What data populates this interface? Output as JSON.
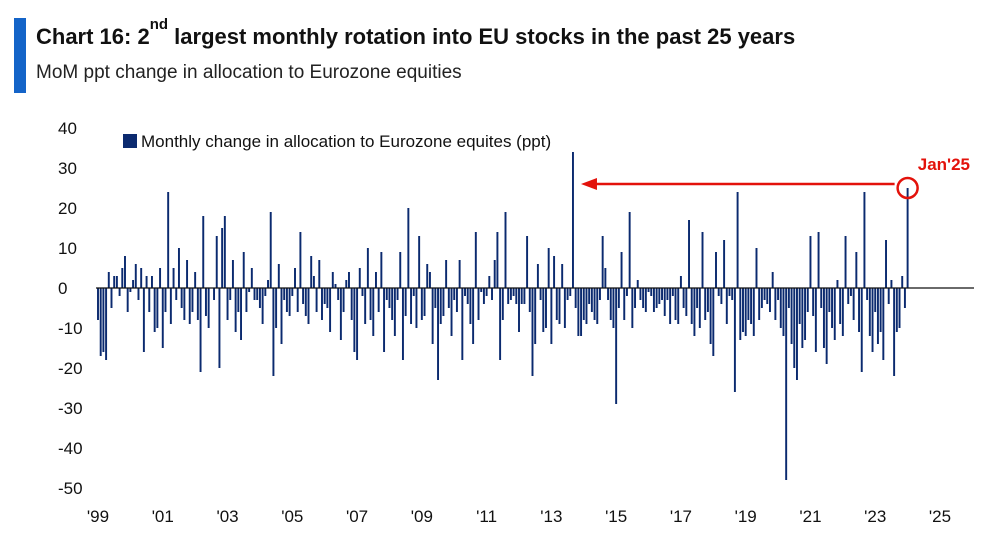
{
  "header": {
    "title_prefix": "Chart 16: 2",
    "title_sup": "nd",
    "title_suffix": " largest monthly rotation into EU stocks in the past 25 years",
    "subtitle": "MoM ppt change in allocation to Eurozone equities"
  },
  "colors": {
    "accent": "#1464c8",
    "bars": "#0b2a6f",
    "annotation": "#e3120b",
    "axis": "#111111"
  },
  "chart_data": {
    "type": "bar",
    "ylim": [
      -50,
      40
    ],
    "yticks": [
      40,
      30,
      20,
      10,
      0,
      -10,
      -20,
      -30,
      -40,
      -50
    ],
    "x_start": "1999-01",
    "x_end": "2025-01",
    "xticks": [
      {
        "label": "'99",
        "year": 1999
      },
      {
        "label": "'01",
        "year": 2001
      },
      {
        "label": "'03",
        "year": 2003
      },
      {
        "label": "'05",
        "year": 2005
      },
      {
        "label": "'07",
        "year": 2007
      },
      {
        "label": "'09",
        "year": 2009
      },
      {
        "label": "'11",
        "year": 2011
      },
      {
        "label": "'13",
        "year": 2013
      },
      {
        "label": "'15",
        "year": 2015
      },
      {
        "label": "'17",
        "year": 2017
      },
      {
        "label": "'19",
        "year": 2019
      },
      {
        "label": "'21",
        "year": 2021
      },
      {
        "label": "'23",
        "year": 2023
      },
      {
        "label": "'25",
        "year": 2025
      }
    ],
    "legend": "Monthly change in allocation to Eurozone equites (ppt)",
    "series": [
      {
        "name": "Monthly change in allocation to Eurozone equites (ppt)",
        "values": [
          -8,
          -17,
          -16,
          -18,
          4,
          -5,
          3,
          3,
          -2,
          5,
          8,
          -6,
          -1,
          2,
          6,
          -3,
          5,
          -16,
          3,
          -6,
          3,
          -11,
          -10,
          5,
          -15,
          -6,
          24,
          -9,
          5,
          -3,
          10,
          -5,
          -8,
          7,
          -9,
          -6,
          4,
          -8,
          -21,
          18,
          -7,
          -10,
          0,
          -3,
          13,
          -20,
          15,
          18,
          -8,
          -3,
          7,
          -11,
          -6,
          -13,
          9,
          -6,
          -1,
          5,
          -3,
          -3,
          -5,
          -9,
          -2,
          2,
          19,
          -22,
          -10,
          6,
          -14,
          -3,
          -6,
          -7,
          -2,
          5,
          -6,
          14,
          -4,
          -7,
          -9,
          8,
          3,
          -6,
          7,
          -8,
          -4,
          -5,
          -11,
          4,
          1,
          -3,
          -13,
          -6,
          2,
          4,
          -8,
          -16,
          -18,
          5,
          -2,
          -9,
          10,
          -8,
          -12,
          4,
          -6,
          9,
          -16,
          -3,
          -5,
          -8,
          -12,
          -3,
          9,
          -18,
          -7,
          20,
          -9,
          -2,
          -10,
          13,
          -8,
          -7,
          6,
          4,
          -14,
          -5,
          -23,
          -9,
          -7,
          7,
          -5,
          -12,
          -3,
          -6,
          7,
          -18,
          -2,
          -4,
          -9,
          -14,
          14,
          -8,
          -1,
          -4,
          -2,
          3,
          -3,
          7,
          14,
          -18,
          -8,
          19,
          -4,
          -3,
          -2,
          -4,
          -11,
          -4,
          -4,
          13,
          -6,
          -22,
          -14,
          6,
          -3,
          -11,
          -10,
          10,
          -14,
          8,
          -8,
          -9,
          6,
          -10,
          -3,
          -2,
          34,
          -5,
          -12,
          -12,
          -8,
          -9,
          -4,
          -6,
          -8,
          -9,
          -3,
          13,
          5,
          -3,
          -8,
          -10,
          -29,
          -5,
          9,
          -8,
          -2,
          19,
          -10,
          -5,
          2,
          -3,
          -5,
          -6,
          -1,
          -2,
          -6,
          -5,
          -4,
          -3,
          -7,
          -3,
          -9,
          -2,
          -8,
          -9,
          3,
          -5,
          -7,
          17,
          -9,
          -12,
          -5,
          -10,
          14,
          -8,
          -6,
          -14,
          -17,
          9,
          -2,
          -4,
          12,
          -9,
          -2,
          -3,
          -26,
          24,
          -13,
          -11,
          -12,
          -8,
          -9,
          -12,
          10,
          -8,
          -5,
          -3,
          -4,
          -6,
          4,
          -8,
          -3,
          -10,
          -12,
          -48,
          -5,
          -14,
          -20,
          -23,
          -9,
          -15,
          -13,
          -6,
          13,
          -7,
          -16,
          14,
          -5,
          -15,
          -19,
          -6,
          -10,
          -13,
          2,
          -9,
          -12,
          13,
          -4,
          -2,
          -8,
          9,
          -11,
          -21,
          24,
          -3,
          -12,
          -16,
          -6,
          -14,
          -11,
          -18,
          12,
          -4,
          2,
          -22,
          -11,
          -10,
          3,
          -5,
          25
        ]
      }
    ],
    "annotation": {
      "label": "Jan'25",
      "value": 25,
      "arrow_to_value": 34
    }
  }
}
